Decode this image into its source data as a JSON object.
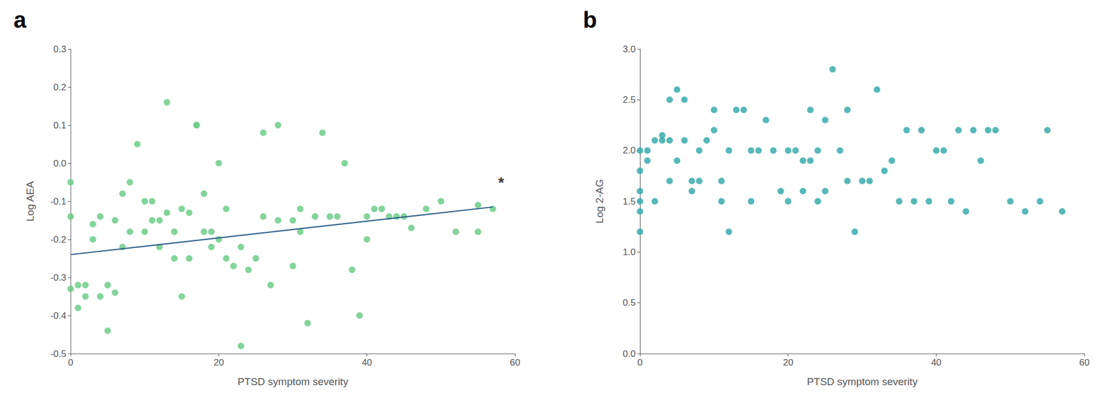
{
  "chart_data": [
    {
      "type": "scatter",
      "title": "a",
      "xlabel": "PTSD symptom severity",
      "ylabel": "Log AEA",
      "xlim": [
        0,
        60
      ],
      "xticks": [
        0,
        20,
        40,
        60
      ],
      "ylim": [
        -0.5,
        0.3
      ],
      "yticks": [
        -0.5,
        -0.4,
        -0.3,
        -0.2,
        -0.1,
        {
          "value": 0,
          "label": "0.0"
        },
        0.1,
        0.2,
        0.3
      ],
      "grid": false,
      "series": [
        {
          "type": "scatter",
          "color": "#6dcc8a",
          "x": [
            0,
            0,
            0,
            1,
            1,
            2,
            2,
            3,
            3,
            4,
            4,
            5,
            5,
            6,
            6,
            7,
            7,
            8,
            8,
            9,
            10,
            10,
            11,
            11,
            12,
            12,
            13,
            13,
            14,
            14,
            15,
            15,
            16,
            16,
            17,
            17,
            18,
            18,
            19,
            19,
            20,
            20,
            21,
            21,
            22,
            23,
            23,
            24,
            25,
            26,
            26,
            27,
            28,
            28,
            30,
            30,
            31,
            31,
            32,
            33,
            34,
            35,
            36,
            37,
            38,
            39,
            40,
            40,
            41,
            42,
            43,
            44,
            45,
            46,
            48,
            50,
            52,
            55,
            55,
            57
          ],
          "values": [
            -0.05,
            -0.14,
            -0.33,
            -0.32,
            -0.38,
            -0.32,
            -0.35,
            -0.16,
            -0.2,
            -0.14,
            -0.35,
            -0.32,
            -0.44,
            -0.15,
            -0.34,
            -0.08,
            -0.22,
            -0.05,
            -0.18,
            0.05,
            -0.1,
            -0.18,
            -0.1,
            -0.15,
            -0.15,
            -0.22,
            0.16,
            -0.13,
            -0.18,
            -0.25,
            -0.12,
            -0.35,
            -0.13,
            -0.25,
            0.1,
            0.1,
            -0.08,
            -0.18,
            -0.18,
            -0.22,
            0.0,
            -0.2,
            -0.12,
            -0.25,
            -0.27,
            -0.48,
            -0.22,
            -0.28,
            -0.25,
            0.08,
            -0.14,
            -0.32,
            0.1,
            -0.15,
            -0.15,
            -0.27,
            -0.12,
            -0.18,
            -0.42,
            -0.14,
            0.08,
            -0.14,
            -0.14,
            0.0,
            -0.28,
            -0.4,
            -0.14,
            -0.2,
            -0.12,
            -0.12,
            -0.14,
            -0.14,
            -0.14,
            -0.17,
            -0.12,
            -0.1,
            -0.18,
            -0.11,
            -0.18,
            -0.12
          ]
        },
        {
          "type": "line",
          "color": "#2b5f8a",
          "x": [
            0,
            57
          ],
          "values": [
            -0.24,
            -0.115
          ]
        }
      ],
      "annotations": [
        {
          "text": "*",
          "x": 57,
          "y": -0.05
        }
      ]
    },
    {
      "type": "scatter",
      "title": "b",
      "xlabel": "PTSD symptom severity",
      "ylabel": "Log 2-AG",
      "xlim": [
        0,
        60
      ],
      "xticks": [
        0,
        20,
        40,
        60
      ],
      "ylim": [
        0,
        3
      ],
      "yticks": [
        {
          "value": 0,
          "label": "0.0"
        },
        0.5,
        {
          "value": 1.0,
          "label": "1.0"
        },
        1.5,
        {
          "value": 2.0,
          "label": "2.0"
        },
        2.5,
        {
          "value": 3.0,
          "label": "3.0"
        }
      ],
      "grid": false,
      "series": [
        {
          "type": "scatter",
          "color": "#3aacac",
          "x": [
            0,
            0,
            0,
            0,
            0,
            0,
            1,
            1,
            2,
            2,
            3,
            3,
            4,
            4,
            4,
            5,
            5,
            6,
            6,
            7,
            7,
            8,
            8,
            9,
            10,
            10,
            11,
            11,
            12,
            12,
            13,
            14,
            15,
            15,
            16,
            17,
            18,
            19,
            20,
            20,
            21,
            22,
            22,
            23,
            23,
            24,
            24,
            25,
            25,
            26,
            27,
            28,
            28,
            29,
            30,
            31,
            32,
            33,
            34,
            35,
            36,
            37,
            38,
            39,
            40,
            41,
            42,
            43,
            44,
            45,
            46,
            47,
            48,
            50,
            52,
            54,
            55,
            57
          ],
          "values": [
            1.2,
            1.4,
            1.5,
            1.6,
            1.8,
            2.0,
            1.9,
            2.0,
            1.5,
            2.1,
            2.1,
            2.15,
            1.7,
            2.1,
            2.5,
            1.9,
            2.6,
            2.1,
            2.5,
            1.7,
            1.6,
            1.7,
            2.0,
            2.1,
            2.2,
            2.4,
            1.5,
            1.7,
            1.2,
            2.0,
            2.4,
            2.4,
            2.0,
            1.5,
            2.0,
            2.3,
            2.0,
            1.6,
            2.0,
            1.5,
            2.0,
            1.9,
            1.6,
            1.9,
            2.4,
            2.0,
            1.5,
            1.6,
            2.3,
            2.8,
            2.0,
            1.7,
            2.4,
            1.2,
            1.7,
            1.7,
            2.6,
            1.8,
            1.9,
            1.5,
            2.2,
            1.5,
            2.2,
            1.5,
            2.0,
            2.0,
            1.5,
            2.2,
            1.4,
            2.2,
            1.9,
            2.2,
            2.2,
            1.5,
            1.4,
            1.5,
            2.2,
            1.4
          ]
        }
      ]
    }
  ]
}
